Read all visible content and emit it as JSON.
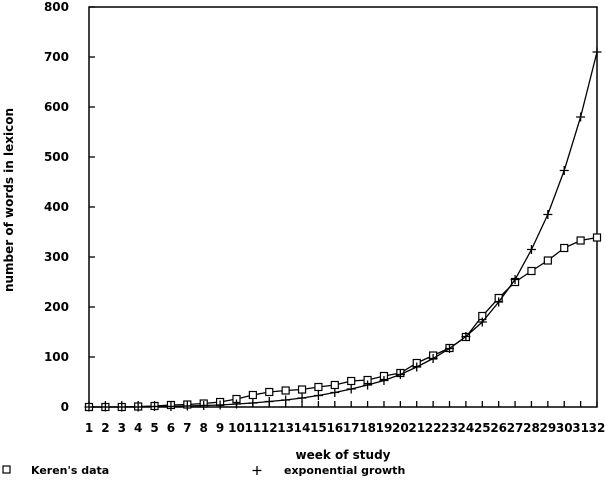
{
  "chart_data": {
    "type": "line",
    "title": "",
    "xlabel": "week of study",
    "ylabel": "number of words in lexicon",
    "x": [
      1,
      2,
      3,
      4,
      5,
      6,
      7,
      8,
      9,
      10,
      11,
      12,
      13,
      14,
      15,
      16,
      17,
      18,
      19,
      20,
      21,
      22,
      23,
      24,
      25,
      26,
      27,
      28,
      29,
      30,
      31,
      32
    ],
    "xlim": [
      1,
      32
    ],
    "ylim": [
      0,
      800
    ],
    "yticks": [
      0,
      100,
      200,
      300,
      400,
      500,
      600,
      700,
      800
    ],
    "grid": false,
    "legend_position": "bottom",
    "series": [
      {
        "name": "Keren's data",
        "marker": "square",
        "color": "#000000",
        "values": [
          0,
          0,
          0,
          1,
          2,
          4,
          5,
          7,
          10,
          16,
          24,
          30,
          33,
          35,
          40,
          44,
          52,
          54,
          62,
          68,
          88,
          103,
          118,
          140,
          182,
          218,
          250,
          272,
          293,
          318,
          333,
          339
        ]
      },
      {
        "name": "exponential growth",
        "marker": "plus",
        "color": "#000000",
        "values": [
          0,
          0,
          0,
          0,
          1,
          1,
          2,
          3,
          4,
          6,
          8,
          11,
          14,
          18,
          23,
          29,
          36,
          44,
          53,
          65,
          80,
          97,
          117,
          141,
          170,
          210,
          255,
          315,
          385,
          473,
          580,
          710
        ]
      }
    ]
  }
}
